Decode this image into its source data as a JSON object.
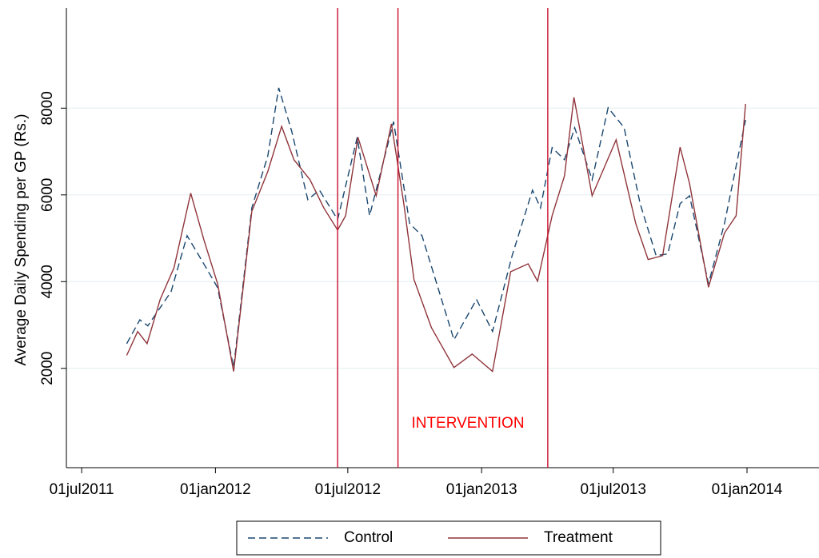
{
  "chart_data": {
    "type": "line",
    "ylabel": "Average Daily Spending per GP (Rs.)",
    "annotation": "INTERVENTION",
    "annotation_color": "#ff0000",
    "vlines": [
      "2012-06-17",
      "2012-09-08",
      "2013-04-02"
    ],
    "vline_color": "#c8102e",
    "xlim": [
      "2011-06-10",
      "2014-04-10"
    ],
    "xticks": [
      {
        "value": "2011-07-01",
        "label": "01jul2011"
      },
      {
        "value": "2012-01-01",
        "label": "01jan2012"
      },
      {
        "value": "2012-07-01",
        "label": "01jul2012"
      },
      {
        "value": "2013-01-01",
        "label": "01jan2013"
      },
      {
        "value": "2013-07-01",
        "label": "01jul2013"
      },
      {
        "value": "2014-01-01",
        "label": "01jan2014"
      }
    ],
    "ylim": [
      -290,
      10310
    ],
    "yticks": [
      2000,
      4000,
      6000,
      8000
    ],
    "grid": true,
    "legend": "bottom",
    "series": [
      {
        "name": "Control",
        "color": "#1a476f",
        "dashed": true,
        "x": [
          "2011-09-01",
          "2011-09-19",
          "2011-09-30",
          "2011-11-01",
          "2011-11-23",
          "2011-12-16",
          "2012-01-04",
          "2012-01-26",
          "2012-02-20",
          "2012-03-13",
          "2012-03-28",
          "2012-04-15",
          "2012-05-07",
          "2012-05-23",
          "2012-06-17",
          "2012-07-14",
          "2012-07-31",
          "2012-09-02",
          "2012-09-24",
          "2012-10-11",
          "2012-11-02",
          "2012-11-24",
          "2012-12-25",
          "2013-01-16",
          "2013-02-12",
          "2013-03-12",
          "2013-03-23",
          "2013-04-08",
          "2013-04-25",
          "2013-05-09",
          "2013-06-02",
          "2013-06-24",
          "2013-07-16",
          "2013-08-07",
          "2013-08-29",
          "2013-09-14",
          "2013-10-01",
          "2013-10-14",
          "2013-11-09",
          "2013-12-01",
          "2013-12-30"
        ],
        "values": [
          2570,
          3120,
          2980,
          3770,
          5060,
          4410,
          3860,
          2020,
          5700,
          6900,
          8470,
          7460,
          5890,
          6110,
          5430,
          7330,
          5520,
          7690,
          5340,
          5060,
          3860,
          2660,
          3590,
          2850,
          4600,
          6110,
          5700,
          7090,
          6810,
          7550,
          6350,
          8010,
          7550,
          5800,
          4600,
          4640,
          5800,
          5980,
          3950,
          5340,
          7730
        ]
      },
      {
        "name": "Treatment",
        "color": "#90353b",
        "dashed": false,
        "x": [
          "2011-09-01",
          "2011-09-16",
          "2011-09-29",
          "2011-10-17",
          "2011-11-05",
          "2011-11-28",
          "2011-12-16",
          "2012-01-04",
          "2012-01-26",
          "2012-02-20",
          "2012-03-13",
          "2012-04-01",
          "2012-04-18",
          "2012-05-10",
          "2012-05-29",
          "2012-06-17",
          "2012-06-28",
          "2012-07-15",
          "2012-08-09",
          "2012-08-30",
          "2012-09-16",
          "2012-09-30",
          "2012-10-24",
          "2012-11-24",
          "2012-12-19",
          "2013-01-16",
          "2013-02-10",
          "2013-03-06",
          "2013-03-19",
          "2013-04-08",
          "2013-04-25",
          "2013-05-08",
          "2013-06-02",
          "2013-07-05",
          "2013-08-01",
          "2013-08-18",
          "2013-09-07",
          "2013-10-01",
          "2013-10-14",
          "2013-11-09",
          "2013-12-01",
          "2013-12-17",
          "2013-12-30"
        ],
        "values": [
          2300,
          2850,
          2570,
          3590,
          4320,
          6040,
          4970,
          3950,
          1930,
          5620,
          6540,
          7580,
          6810,
          6350,
          5700,
          5190,
          5520,
          7330,
          5980,
          7640,
          5800,
          4050,
          2940,
          2020,
          2330,
          1930,
          4230,
          4410,
          4010,
          5520,
          6440,
          8250,
          5980,
          7270,
          5340,
          4510,
          4600,
          7100,
          6260,
          3870,
          5120,
          5520,
          8100
        ]
      }
    ]
  }
}
